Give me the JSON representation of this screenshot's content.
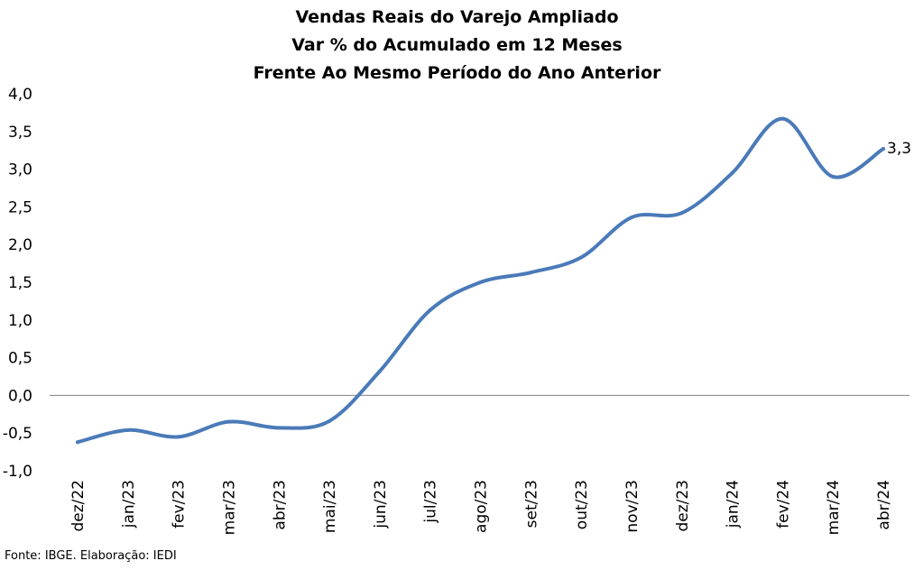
{
  "chart_data": {
    "type": "line",
    "title_lines": [
      "Vendas Reais do Varejo Ampliado",
      "Var % do Acumulado em 12 Meses",
      "Frente Ao Mesmo Período do Ano Anterior"
    ],
    "xlabel": "",
    "ylabel": "",
    "categories": [
      "dez/22",
      "jan/23",
      "fev/23",
      "mar/23",
      "abr/23",
      "mai/23",
      "jun/23",
      "jul/23",
      "ago/23",
      "set/23",
      "out/23",
      "nov/23",
      "dez/23",
      "jan/24",
      "fev/24",
      "mar/24",
      "abr/24"
    ],
    "values": [
      -0.62,
      -0.46,
      -0.55,
      -0.35,
      -0.43,
      -0.34,
      0.32,
      1.13,
      1.5,
      1.63,
      1.83,
      2.36,
      2.42,
      2.95,
      3.67,
      2.9,
      3.27
    ],
    "ylim": [
      -1.0,
      4.0
    ],
    "yticks": [
      "4,0",
      "3,5",
      "3,0",
      "2,5",
      "2,0",
      "1,5",
      "1,0",
      "0,5",
      "0,0",
      "-0,5",
      "-1,0"
    ],
    "last_value_label": "3,3",
    "line_color": "#4a7ab8",
    "zero_line_color": "#808080",
    "grid": false,
    "legend": "none"
  },
  "source_note": "Fonte: IBGE. Elaboração: IEDI"
}
